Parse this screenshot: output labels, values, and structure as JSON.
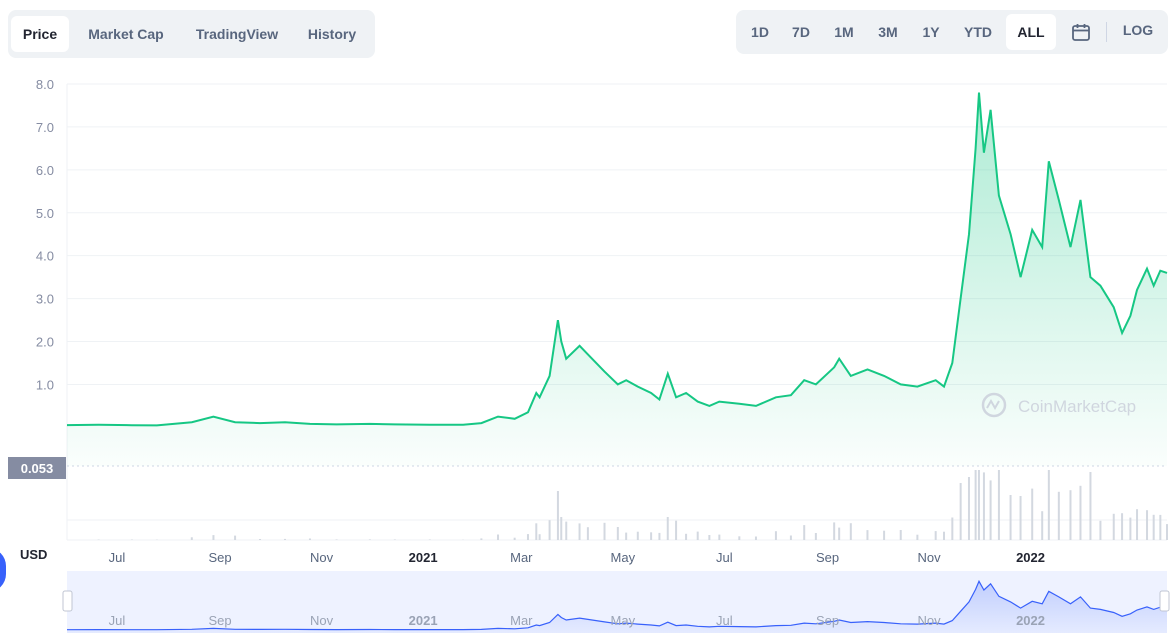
{
  "tabs": [
    {
      "label": "Price",
      "active": true
    },
    {
      "label": "Market Cap",
      "active": false
    },
    {
      "label": "TradingView",
      "active": false
    },
    {
      "label": "History",
      "active": false
    }
  ],
  "ranges": [
    {
      "label": "1D",
      "active": false
    },
    {
      "label": "7D",
      "active": false
    },
    {
      "label": "1M",
      "active": false
    },
    {
      "label": "3M",
      "active": false
    },
    {
      "label": "1Y",
      "active": false
    },
    {
      "label": "YTD",
      "active": false
    },
    {
      "label": "ALL",
      "active": true
    }
  ],
  "calendar_icon": "calendar-icon",
  "log_label": "LOG",
  "currency_label": "USD",
  "watermark": "CoinMarketCap",
  "colors": {
    "line": "#16c784",
    "navigator": "#3861fb",
    "tab_bg": "#eff2f5"
  },
  "chart_data": {
    "type": "line",
    "title": "",
    "xlabel": "",
    "ylabel": "",
    "ylim": [
      -0.9,
      8.0
    ],
    "yticks": [
      "8.0",
      "7.0",
      "6.0",
      "5.0",
      "4.0",
      "3.0",
      "2.0",
      "1.0"
    ],
    "xticks": [
      "Jul",
      "Sep",
      "Nov",
      "2021",
      "Mar",
      "May",
      "Jul",
      "Sep",
      "Nov",
      "2022"
    ],
    "navigator_ticks": [
      "Jul",
      "Sep",
      "Nov",
      "2021",
      "Mar",
      "May",
      "Jul",
      "Sep",
      "Nov",
      "2022"
    ],
    "start_price_label": "0.053",
    "grid": true,
    "series": [
      {
        "values": [
          [
            "2020-06-01",
            0.053
          ],
          [
            "2020-06-20",
            0.06
          ],
          [
            "2020-07-10",
            0.05
          ],
          [
            "2020-07-25",
            0.045
          ],
          [
            "2020-08-15",
            0.12
          ],
          [
            "2020-08-28",
            0.25
          ],
          [
            "2020-09-10",
            0.12
          ],
          [
            "2020-09-25",
            0.1
          ],
          [
            "2020-10-10",
            0.12
          ],
          [
            "2020-10-25",
            0.08
          ],
          [
            "2020-11-10",
            0.07
          ],
          [
            "2020-11-30",
            0.08
          ],
          [
            "2020-12-15",
            0.07
          ],
          [
            "2021-01-05",
            0.06
          ],
          [
            "2021-01-25",
            0.06
          ],
          [
            "2021-02-05",
            0.1
          ],
          [
            "2021-02-15",
            0.25
          ],
          [
            "2021-02-25",
            0.2
          ],
          [
            "2021-03-05",
            0.35
          ],
          [
            "2021-03-10",
            0.8
          ],
          [
            "2021-03-12",
            0.7
          ],
          [
            "2021-03-18",
            1.2
          ],
          [
            "2021-03-23",
            2.5
          ],
          [
            "2021-03-25",
            2.0
          ],
          [
            "2021-03-28",
            1.6
          ],
          [
            "2021-04-05",
            1.9
          ],
          [
            "2021-04-10",
            1.7
          ],
          [
            "2021-04-20",
            1.3
          ],
          [
            "2021-04-28",
            1.0
          ],
          [
            "2021-05-03",
            1.1
          ],
          [
            "2021-05-10",
            0.95
          ],
          [
            "2021-05-18",
            0.8
          ],
          [
            "2021-05-23",
            0.65
          ],
          [
            "2021-05-28",
            1.25
          ],
          [
            "2021-06-02",
            0.7
          ],
          [
            "2021-06-08",
            0.8
          ],
          [
            "2021-06-15",
            0.6
          ],
          [
            "2021-06-22",
            0.5
          ],
          [
            "2021-06-28",
            0.6
          ],
          [
            "2021-07-10",
            0.55
          ],
          [
            "2021-07-20",
            0.5
          ],
          [
            "2021-08-01",
            0.7
          ],
          [
            "2021-08-10",
            0.75
          ],
          [
            "2021-08-18",
            1.1
          ],
          [
            "2021-08-25",
            1.0
          ],
          [
            "2021-09-05",
            1.4
          ],
          [
            "2021-09-08",
            1.6
          ],
          [
            "2021-09-15",
            1.2
          ],
          [
            "2021-09-25",
            1.35
          ],
          [
            "2021-10-05",
            1.2
          ],
          [
            "2021-10-15",
            1.0
          ],
          [
            "2021-10-25",
            0.95
          ],
          [
            "2021-11-05",
            1.1
          ],
          [
            "2021-11-10",
            0.95
          ],
          [
            "2021-11-15",
            1.5
          ],
          [
            "2021-11-20",
            3.0
          ],
          [
            "2021-11-25",
            4.5
          ],
          [
            "2021-11-29",
            6.5
          ],
          [
            "2021-12-01",
            7.8
          ],
          [
            "2021-12-04",
            6.4
          ],
          [
            "2021-12-08",
            7.4
          ],
          [
            "2021-12-13",
            5.4
          ],
          [
            "2021-12-20",
            4.5
          ],
          [
            "2021-12-26",
            3.5
          ],
          [
            "2022-01-02",
            4.6
          ],
          [
            "2022-01-08",
            4.2
          ],
          [
            "2022-01-12",
            6.2
          ],
          [
            "2022-01-18",
            5.3
          ],
          [
            "2022-01-25",
            4.2
          ],
          [
            "2022-01-31",
            5.3
          ],
          [
            "2022-02-06",
            3.5
          ],
          [
            "2022-02-12",
            3.3
          ],
          [
            "2022-02-20",
            2.8
          ],
          [
            "2022-02-25",
            2.2
          ],
          [
            "2022-03-02",
            2.6
          ],
          [
            "2022-03-06",
            3.2
          ],
          [
            "2022-03-12",
            3.7
          ],
          [
            "2022-03-16",
            3.3
          ],
          [
            "2022-03-20",
            3.65
          ],
          [
            "2022-03-24",
            3.6
          ]
        ]
      }
    ]
  }
}
